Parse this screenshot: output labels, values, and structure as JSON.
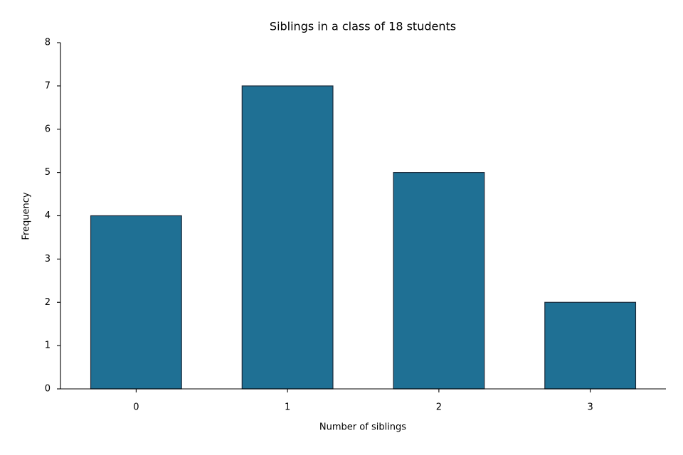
{
  "chart_data": {
    "type": "bar",
    "title": "Siblings in a class of 18 students",
    "x_label": "Number of siblings",
    "y_label": "Frequency",
    "categories": [
      "0",
      "1",
      "2",
      "3"
    ],
    "values": [
      4,
      7,
      5,
      2
    ],
    "color": "#1f7094",
    "edge_color": "#1b2a3a",
    "ylim": [
      0,
      8
    ],
    "yticks": [
      0,
      1,
      2,
      3,
      4,
      5,
      6,
      7,
      8
    ],
    "grid": false
  }
}
